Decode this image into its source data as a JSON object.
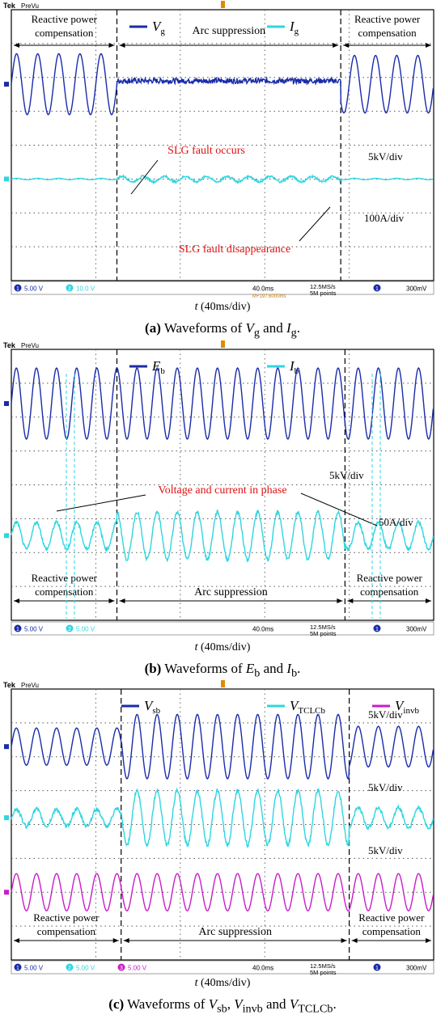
{
  "chart_data": [
    {
      "type": "line",
      "panel": "a",
      "scope_brand": "Tek",
      "scope_mode": "PreVu",
      "caption_letter": "(a)",
      "caption_text": "Waveforms of",
      "caption_vars": [
        {
          "main": "V",
          "sub": "g"
        },
        {
          "main": "I",
          "sub": "g"
        }
      ],
      "caption_sep": [
        "",
        " and ",
        "."
      ],
      "xlabel_var": "t",
      "xlabel_unit": " (40ms/div)",
      "legend": [
        {
          "main": "V",
          "sub": "g",
          "color": "#1a2ca8"
        },
        {
          "main": "I",
          "sub": "g",
          "color": "#2fd6e0"
        }
      ],
      "regions": [
        {
          "label": [
            "Reactive power",
            "compensation"
          ],
          "x_div": [
            0,
            1.25
          ]
        },
        {
          "label": [
            "Arc suppression"
          ],
          "x_div": [
            1.25,
            3.9
          ]
        },
        {
          "label": [
            "Reactive power",
            "compensation"
          ],
          "x_div": [
            3.9,
            5
          ]
        }
      ],
      "divisions": {
        "x": 5,
        "y": 8
      },
      "time_per_div_ms": 40,
      "series": [
        {
          "name": "Vg",
          "color": "#1a2ca8",
          "baseline_div": 2.2,
          "segments": [
            {
              "from": 0,
              "to": 1.25,
              "amp": 0.9,
              "cycles_per_div": 4.0
            },
            {
              "from": 1.25,
              "to": 3.9,
              "amp": 0.12,
              "cycles_per_div": 0,
              "offset": 0.1,
              "noise": 0.08
            },
            {
              "from": 3.9,
              "to": 5,
              "amp": 0.85,
              "cycles_per_div": 4.0
            }
          ]
        },
        {
          "name": "Ig",
          "color": "#2fd6e0",
          "baseline_div": 5.0,
          "segments": [
            {
              "from": 0,
              "to": 1.25,
              "amp": 0.02,
              "cycles_per_div": 4.0
            },
            {
              "from": 1.25,
              "to": 3.9,
              "amp": 0.08,
              "cycles_per_div": 4.0,
              "noise": 0.03
            },
            {
              "from": 3.9,
              "to": 5,
              "amp": 0.02,
              "cycles_per_div": 4.0
            }
          ]
        }
      ],
      "annotations": [
        {
          "text": "SLG fault occurs",
          "color": "#e01010"
        },
        {
          "text": "SLG fault disappearance",
          "color": "#e01010"
        },
        {
          "text": "5kV/div",
          "color": "#000000"
        },
        {
          "text": "100A/div",
          "color": "#000000"
        }
      ],
      "status_bar": {
        "ch1": "5.00 V",
        "ch2": "10.0 V",
        "timebase": "40.0ms",
        "trig_pos": "M+197.6000ms",
        "rate": "12.5MS/s",
        "points": "5M points",
        "trig_level": "300mV"
      }
    },
    {
      "type": "line",
      "panel": "b",
      "scope_brand": "Tek",
      "scope_mode": "PreVu",
      "caption_letter": "(b)",
      "caption_text": "Waveforms of",
      "caption_vars": [
        {
          "main": "E",
          "sub": "b"
        },
        {
          "main": "I",
          "sub": "b"
        }
      ],
      "caption_sep": [
        "",
        " and ",
        "."
      ],
      "xlabel_var": "t",
      "xlabel_unit": " (40ms/div)",
      "legend": [
        {
          "main": "E",
          "sub": "b",
          "color": "#1a2ca8"
        },
        {
          "main": "I",
          "sub": "b",
          "color": "#2fd6e0"
        }
      ],
      "regions": [
        {
          "label": [
            "Reactive power",
            "compensation"
          ],
          "x_div": [
            0,
            1.25
          ]
        },
        {
          "label": [
            "Arc suppression"
          ],
          "x_div": [
            1.25,
            3.95
          ]
        },
        {
          "label": [
            "Reactive power",
            "compensation"
          ],
          "x_div": [
            3.95,
            5
          ]
        }
      ],
      "divisions": {
        "x": 5,
        "y": 8
      },
      "time_per_div_ms": 40,
      "series": [
        {
          "name": "Eb",
          "color": "#1a2ca8",
          "baseline_div": 1.6,
          "segments": [
            {
              "from": 0,
              "to": 5,
              "amp": 1.05,
              "cycles_per_div": 4.2
            }
          ]
        },
        {
          "name": "Ib",
          "color": "#2fd6e0",
          "baseline_div": 5.5,
          "segments": [
            {
              "from": 0,
              "to": 1.25,
              "amp": 0.4,
              "cycles_per_div": 4.2,
              "noise": 0.05
            },
            {
              "from": 1.25,
              "to": 3.95,
              "amp": 0.7,
              "cycles_per_div": 4.2,
              "noise": 0.05
            },
            {
              "from": 3.95,
              "to": 5,
              "amp": 0.4,
              "cycles_per_div": 4.2,
              "noise": 0.05
            }
          ]
        }
      ],
      "annotations": [
        {
          "text": "Voltage and current in phase",
          "color": "#e01010"
        },
        {
          "text": "5kV/div",
          "color": "#000000"
        },
        {
          "text": "50A/div",
          "color": "#000000"
        }
      ],
      "status_bar": {
        "ch1": "5.00 V",
        "ch2": "5.00 V",
        "timebase": "40.0ms",
        "trig_pos": "",
        "rate": "12.5MS/s",
        "points": "5M points",
        "trig_level": "300mV"
      }
    },
    {
      "type": "line",
      "panel": "c",
      "scope_brand": "Tek",
      "scope_mode": "PreVu",
      "caption_letter": "(c)",
      "caption_text": "Waveforms of",
      "caption_vars": [
        {
          "main": "V",
          "sub": "sb"
        },
        {
          "main": "V",
          "sub": "invb"
        },
        {
          "main": "V",
          "sub": "TCLCb"
        }
      ],
      "caption_sep": [
        "",
        ", ",
        " and ",
        "."
      ],
      "xlabel_var": "t",
      "xlabel_unit": " (40ms/div)",
      "legend": [
        {
          "main": "V",
          "sub": "sb",
          "color": "#1a2ca8"
        },
        {
          "main": "V",
          "sub": "TCLCb",
          "color": "#2fd6e0"
        },
        {
          "main": "V",
          "sub": "invb",
          "color": "#c81ec8"
        }
      ],
      "regions": [
        {
          "label": [
            "Reactive power",
            "compensation"
          ],
          "x_div": [
            0,
            1.3
          ]
        },
        {
          "label": [
            "Arc suppression"
          ],
          "x_div": [
            1.3,
            4.0
          ]
        },
        {
          "label": [
            "Reactive power",
            "compensation"
          ],
          "x_div": [
            4.0,
            5
          ]
        }
      ],
      "divisions": {
        "x": 5,
        "y": 8
      },
      "time_per_div_ms": 40,
      "series": [
        {
          "name": "Vsb",
          "color": "#1a2ca8",
          "baseline_div": 1.7,
          "segments": [
            {
              "from": 0,
              "to": 1.3,
              "amp": 0.55,
              "cycles_per_div": 4.2
            },
            {
              "from": 1.3,
              "to": 4.0,
              "amp": 0.95,
              "cycles_per_div": 4.2
            },
            {
              "from": 4.0,
              "to": 5,
              "amp": 0.6,
              "cycles_per_div": 4.2
            }
          ]
        },
        {
          "name": "VTCLCb",
          "color": "#2fd6e0",
          "baseline_div": 3.8,
          "segments": [
            {
              "from": 0,
              "to": 1.3,
              "amp": 0.25,
              "cycles_per_div": 4.2,
              "noise": 0.06
            },
            {
              "from": 1.3,
              "to": 4.0,
              "amp": 0.8,
              "cycles_per_div": 4.2,
              "noise": 0.06
            },
            {
              "from": 4.0,
              "to": 5,
              "amp": 0.3,
              "cycles_per_div": 4.2,
              "noise": 0.06
            }
          ]
        },
        {
          "name": "Vinvb",
          "color": "#c81ec8",
          "baseline_div": 6.0,
          "segments": [
            {
              "from": 0,
              "to": 1.3,
              "amp": 0.55,
              "cycles_per_div": 4.2
            },
            {
              "from": 1.3,
              "to": 4.0,
              "amp": 0.55,
              "cycles_per_div": 4.2
            },
            {
              "from": 4.0,
              "to": 5,
              "amp": 0.55,
              "cycles_per_div": 4.2
            }
          ]
        }
      ],
      "annotations": [
        {
          "text": "5kV/div",
          "color": "#000000"
        },
        {
          "text": "5kV/div",
          "color": "#000000"
        },
        {
          "text": "5kV/div",
          "color": "#000000"
        }
      ],
      "status_bar": {
        "ch1": "5.00 V",
        "ch2": "5.00 V",
        "ch3": "5.00 V",
        "timebase": "40.0ms",
        "trig_pos": "",
        "rate": "12.5MS/s",
        "points": "5M points",
        "trig_level": "300mV"
      }
    }
  ]
}
